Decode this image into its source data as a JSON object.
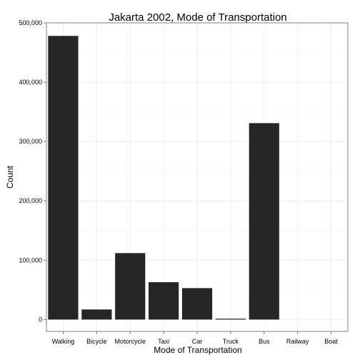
{
  "chart_data": {
    "type": "bar",
    "title": "Jakarta 2002, Mode of Transportation",
    "xlabel": "Mode of Transportation",
    "ylabel": "Count",
    "categories": [
      "Walking",
      "Bicycle",
      "Motorcycle",
      "Taxi",
      "Car",
      "Truck",
      "Bus",
      "Railway",
      "Boat"
    ],
    "values": [
      478000,
      17000,
      112000,
      63000,
      53000,
      1500,
      331000,
      0,
      0
    ],
    "ylim": [
      -20000,
      500000
    ],
    "yticks": [
      0,
      100000,
      200000,
      300000,
      400000,
      500000
    ],
    "ytick_labels": [
      "0",
      "100,000",
      "200,000",
      "300,000",
      "400,000",
      "500,000"
    ],
    "grid": true,
    "bar_color": "#262626"
  }
}
